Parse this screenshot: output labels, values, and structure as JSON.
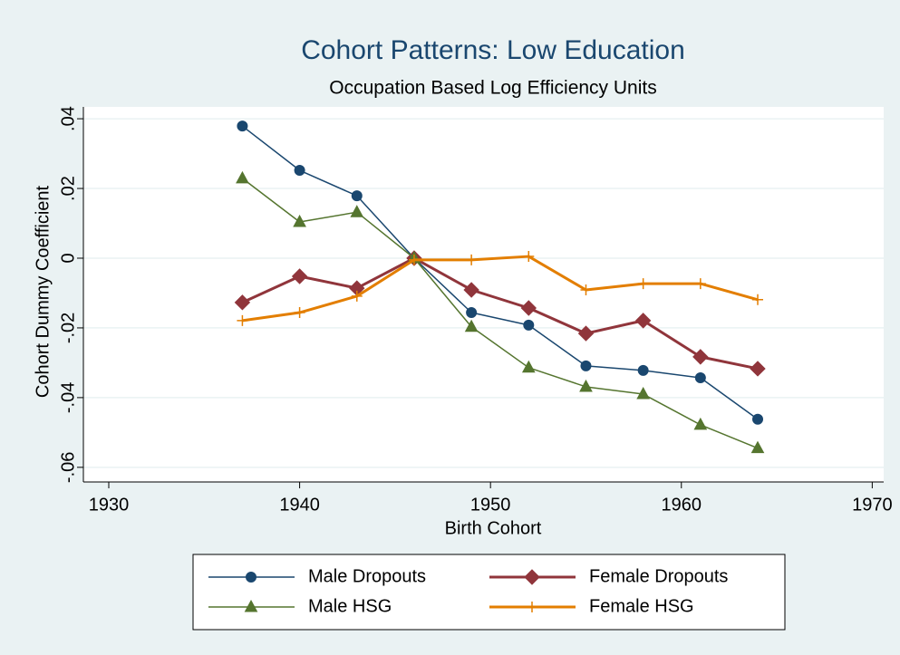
{
  "chart_data": {
    "type": "line",
    "title": "Cohort Patterns: Low Education",
    "subtitle": "Occupation Based Log Efficiency Units",
    "x_label": "Birth Cohort",
    "y_label": "Cohort Dummy Coefficient",
    "x": [
      1937,
      1940,
      1943,
      1946,
      1949,
      1952,
      1955,
      1958,
      1961,
      1964
    ],
    "series": [
      {
        "name": "Male Dropouts",
        "color": "#1a476f",
        "marker": "circle",
        "width": 1.5,
        "values": [
          0.0379,
          0.0252,
          0.0179,
          0,
          -0.0156,
          -0.0192,
          -0.0309,
          -0.0322,
          -0.0343,
          -0.0462
        ]
      },
      {
        "name": "Female Dropouts",
        "color": "#90353b",
        "marker": "diamond",
        "width": 3,
        "values": [
          -0.0127,
          -0.0052,
          -0.0086,
          0,
          -0.0091,
          -0.0143,
          -0.0216,
          -0.0179,
          -0.0283,
          -0.0317
        ]
      },
      {
        "name": "Male HSG",
        "color": "#55752f",
        "marker": "triangle",
        "width": 1.5,
        "values": [
          0.0229,
          0.0104,
          0.0132,
          0,
          -0.0197,
          -0.0314,
          -0.0369,
          -0.039,
          -0.0478,
          -0.0545
        ]
      },
      {
        "name": "Female HSG",
        "color": "#e37e00",
        "marker": "plus",
        "width": 3,
        "values": [
          -0.0179,
          -0.0156,
          -0.0109,
          -0.0005,
          -0.0005,
          0.0005,
          -0.0091,
          -0.0073,
          -0.0073,
          -0.0119
        ]
      }
    ],
    "xlim": [
      1928.67,
      1970.6
    ],
    "ylim": [
      -0.0642,
      0.0434
    ],
    "xticks": [
      1930,
      1940,
      1950,
      1960,
      1970
    ],
    "yticks": [
      {
        "value": -0.06,
        "label": "-.06"
      },
      {
        "value": -0.04,
        "label": "-.04"
      },
      {
        "value": -0.02,
        "label": "-.02"
      },
      0,
      {
        "value": 0.02,
        "label": ".02"
      },
      {
        "value": 0.04,
        "label": ".04"
      }
    ],
    "grid": true,
    "legend": "bottom"
  }
}
